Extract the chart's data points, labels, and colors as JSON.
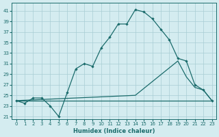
{
  "xlabel": "Humidex (Indice chaleur)",
  "bg_color": "#d4ecf0",
  "grid_color": "#a8cdd4",
  "line_color": "#1a6b6b",
  "xlim": [
    -0.5,
    23.5
  ],
  "ylim": [
    20.5,
    42.5
  ],
  "xticks": [
    0,
    1,
    2,
    3,
    4,
    5,
    6,
    7,
    8,
    9,
    10,
    11,
    12,
    13,
    14,
    15,
    16,
    17,
    18,
    19,
    20,
    21,
    22,
    23
  ],
  "yticks": [
    21,
    23,
    25,
    27,
    29,
    31,
    33,
    35,
    37,
    39,
    41
  ],
  "line1_x": [
    0,
    1,
    2,
    3,
    4,
    5,
    6,
    7,
    8,
    9,
    10,
    11,
    12,
    13,
    14,
    15,
    16,
    17,
    18,
    19,
    20,
    21,
    22,
    23
  ],
  "line1_y": [
    24.0,
    23.5,
    24.5,
    24.5,
    23.0,
    21.0,
    25.5,
    30.0,
    31.0,
    30.5,
    34.0,
    36.0,
    38.5,
    38.5,
    41.2,
    40.8,
    39.5,
    37.5,
    35.5,
    32.0,
    31.5,
    27.0,
    26.0,
    24.0
  ],
  "line2_x": [
    0,
    14,
    19,
    20,
    21,
    22,
    23
  ],
  "line2_y": [
    24.0,
    25.0,
    31.5,
    28.5,
    26.5,
    26.0,
    24.0
  ],
  "line3_x": [
    0,
    23
  ],
  "line3_y": [
    24.0,
    24.0
  ],
  "figsize": [
    3.2,
    2.0
  ],
  "dpi": 100
}
